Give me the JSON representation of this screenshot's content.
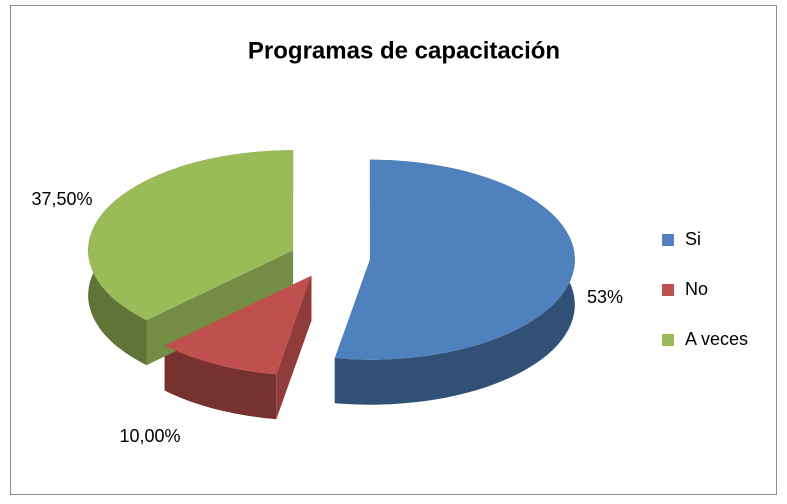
{
  "chart_data": {
    "type": "pie",
    "title": "Programas de capacitación",
    "categories": [
      "Si",
      "No",
      "A veces"
    ],
    "values": [
      53,
      10,
      37.5
    ],
    "value_labels": [
      "53%",
      "10,00%",
      "37,50%"
    ],
    "colors": [
      "#4f81bd",
      "#c0504d",
      "#9bbb59"
    ],
    "legend": "right"
  }
}
